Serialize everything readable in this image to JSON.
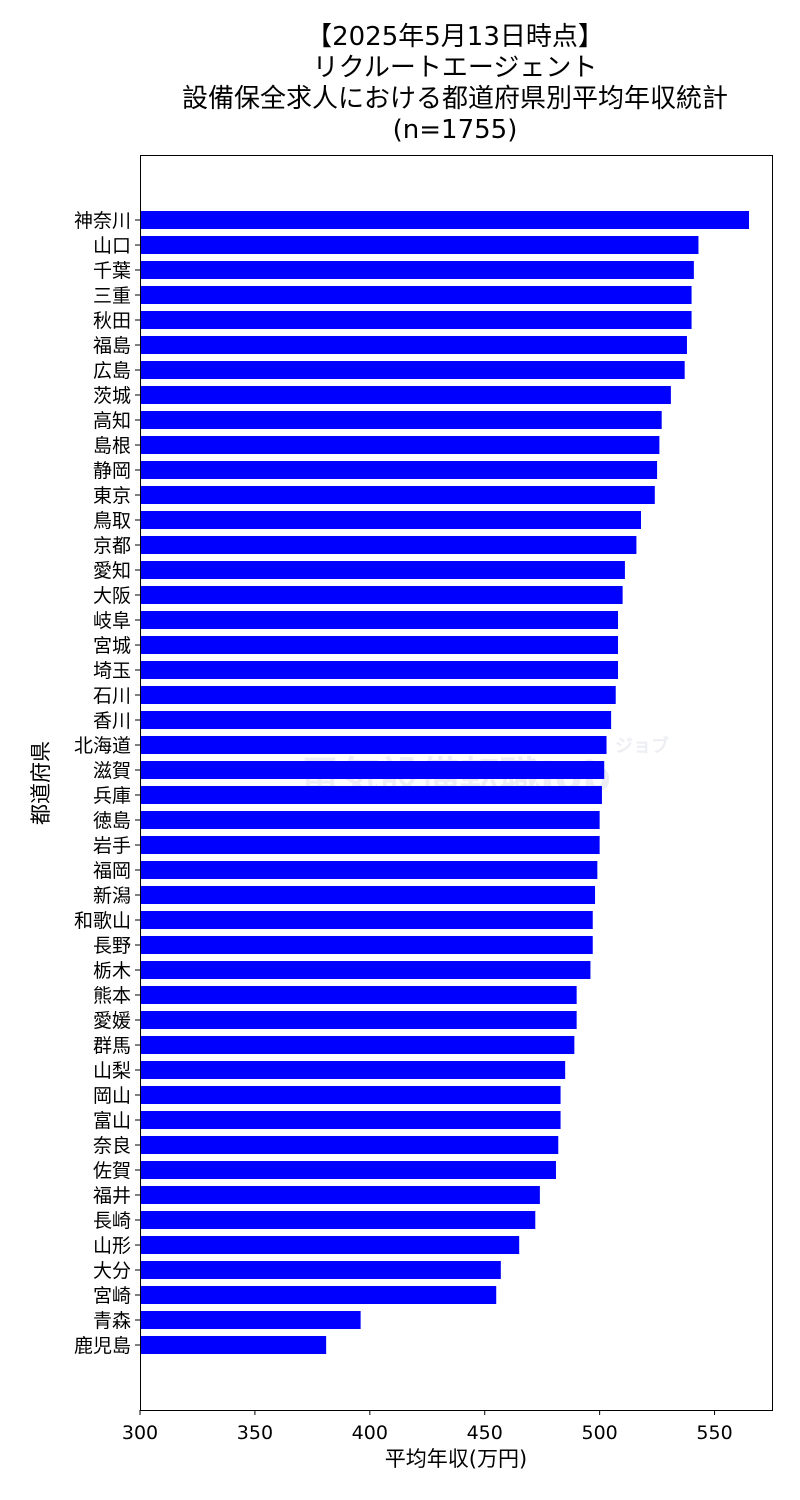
{
  "chart_data": {
    "type": "bar",
    "orientation": "horizontal",
    "title_lines": [
      "【2025年5月13日時点】",
      "リクルートエージェント",
      "設備保全求人における都道府県別平均年収統計",
      "(n=1755)"
    ],
    "xlabel": "平均年収(万円)",
    "ylabel": "都道府県",
    "xlim": [
      300,
      575
    ],
    "xticks": [
      300,
      350,
      400,
      450,
      500,
      550
    ],
    "bar_color": "#0000ff",
    "grid": false,
    "categories": [
      "神奈川",
      "山口",
      "千葉",
      "三重",
      "秋田",
      "福島",
      "広島",
      "茨城",
      "高知",
      "島根",
      "静岡",
      "東京",
      "鳥取",
      "京都",
      "愛知",
      "大阪",
      "岐阜",
      "宮城",
      "埼玉",
      "石川",
      "香川",
      "北海道",
      "滋賀",
      "兵庫",
      "徳島",
      "岩手",
      "福岡",
      "新潟",
      "和歌山",
      "長野",
      "栃木",
      "熊本",
      "愛媛",
      "群馬",
      "山梨",
      "岡山",
      "富山",
      "奈良",
      "佐賀",
      "福井",
      "長崎",
      "山形",
      "大分",
      "宮崎",
      "青森",
      "鹿児島"
    ],
    "values": [
      565,
      543,
      541,
      540,
      540,
      538,
      537,
      531,
      527,
      526,
      525,
      524,
      518,
      516,
      511,
      510,
      508,
      508,
      508,
      507,
      505,
      503,
      502,
      501,
      500,
      500,
      499,
      498,
      497,
      497,
      496,
      490,
      490,
      489,
      485,
      483,
      483,
      482,
      481,
      474,
      472,
      465,
      457,
      455,
      396,
      381
    ]
  },
  "watermark": {
    "text": "電気設備転職Job",
    "small_text": "ジョブ"
  }
}
